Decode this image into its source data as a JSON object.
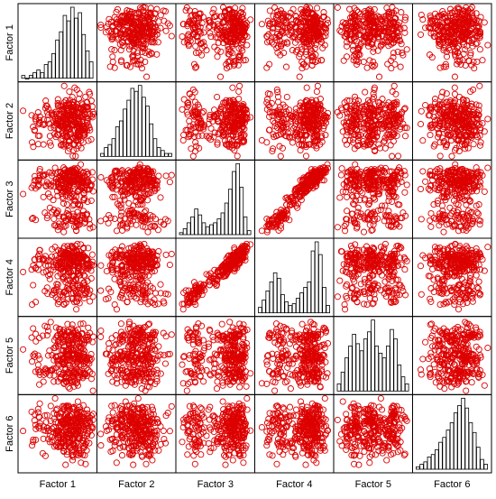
{
  "chart_data": {
    "type": "scatter",
    "chart_kind": "scatterplot-matrix",
    "variables": [
      "Factor 1",
      "Factor 2",
      "Factor 3",
      "Factor 4",
      "Factor 5",
      "Factor 6"
    ],
    "diagonal": "histogram",
    "off_diagonal": "scatter",
    "grid": false,
    "legend": "none",
    "point_color": "#dd0000",
    "marker": "open-circle",
    "histogram_fill": "#ffffff",
    "histogram_stroke": "#000000",
    "histograms": [
      [
        1,
        0,
        1,
        2,
        3,
        2,
        5,
        6,
        9,
        14,
        17,
        23,
        21,
        26,
        22,
        24,
        16,
        10,
        6
      ],
      [
        1,
        3,
        4,
        6,
        10,
        12,
        16,
        19,
        23,
        22,
        24,
        20,
        17,
        11,
        6,
        3,
        2,
        1,
        1
      ],
      [
        1,
        3,
        6,
        9,
        13,
        10,
        6,
        4,
        5,
        6,
        8,
        11,
        16,
        23,
        32,
        36,
        24,
        9,
        2
      ],
      [
        3,
        7,
        12,
        17,
        22,
        19,
        10,
        6,
        4,
        5,
        8,
        11,
        14,
        17,
        34,
        39,
        32,
        14,
        4
      ],
      [
        3,
        8,
        14,
        19,
        24,
        20,
        17,
        22,
        25,
        30,
        19,
        16,
        14,
        19,
        26,
        22,
        11,
        6,
        3
      ],
      [
        1,
        2,
        3,
        5,
        6,
        8,
        11,
        13,
        16,
        19,
        23,
        26,
        29,
        25,
        19,
        15,
        9,
        4,
        2
      ]
    ]
  }
}
